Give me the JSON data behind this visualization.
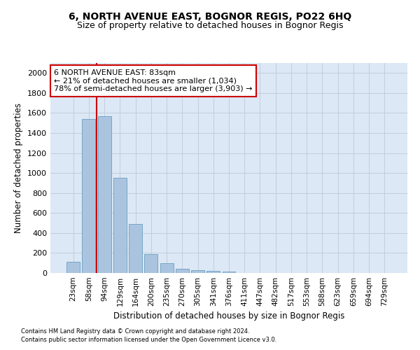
{
  "title": "6, NORTH AVENUE EAST, BOGNOR REGIS, PO22 6HQ",
  "subtitle": "Size of property relative to detached houses in Bognor Regis",
  "xlabel": "Distribution of detached houses by size in Bognor Regis",
  "ylabel": "Number of detached properties",
  "footnote1": "Contains HM Land Registry data © Crown copyright and database right 2024.",
  "footnote2": "Contains public sector information licensed under the Open Government Licence v3.0.",
  "categories": [
    "23sqm",
    "58sqm",
    "94sqm",
    "129sqm",
    "164sqm",
    "200sqm",
    "235sqm",
    "270sqm",
    "305sqm",
    "341sqm",
    "376sqm",
    "411sqm",
    "447sqm",
    "482sqm",
    "517sqm",
    "553sqm",
    "588sqm",
    "623sqm",
    "659sqm",
    "694sqm",
    "729sqm"
  ],
  "values": [
    110,
    1540,
    1570,
    950,
    490,
    190,
    95,
    45,
    30,
    20,
    15,
    0,
    0,
    0,
    0,
    0,
    0,
    0,
    0,
    0,
    0
  ],
  "bar_color": "#aac4e0",
  "bar_edge_color": "#6a9fc0",
  "highlight_line_color": "#cc0000",
  "annotation_text": "6 NORTH AVENUE EAST: 83sqm\n← 21% of detached houses are smaller (1,034)\n78% of semi-detached houses are larger (3,903) →",
  "annotation_box_color": "#ffffff",
  "annotation_box_edge_color": "#cc0000",
  "ylim": [
    0,
    2100
  ],
  "yticks": [
    0,
    200,
    400,
    600,
    800,
    1000,
    1200,
    1400,
    1600,
    1800,
    2000
  ],
  "background_color": "#ffffff",
  "plot_bg_color": "#dce8f5",
  "grid_color": "#c0c8d8"
}
